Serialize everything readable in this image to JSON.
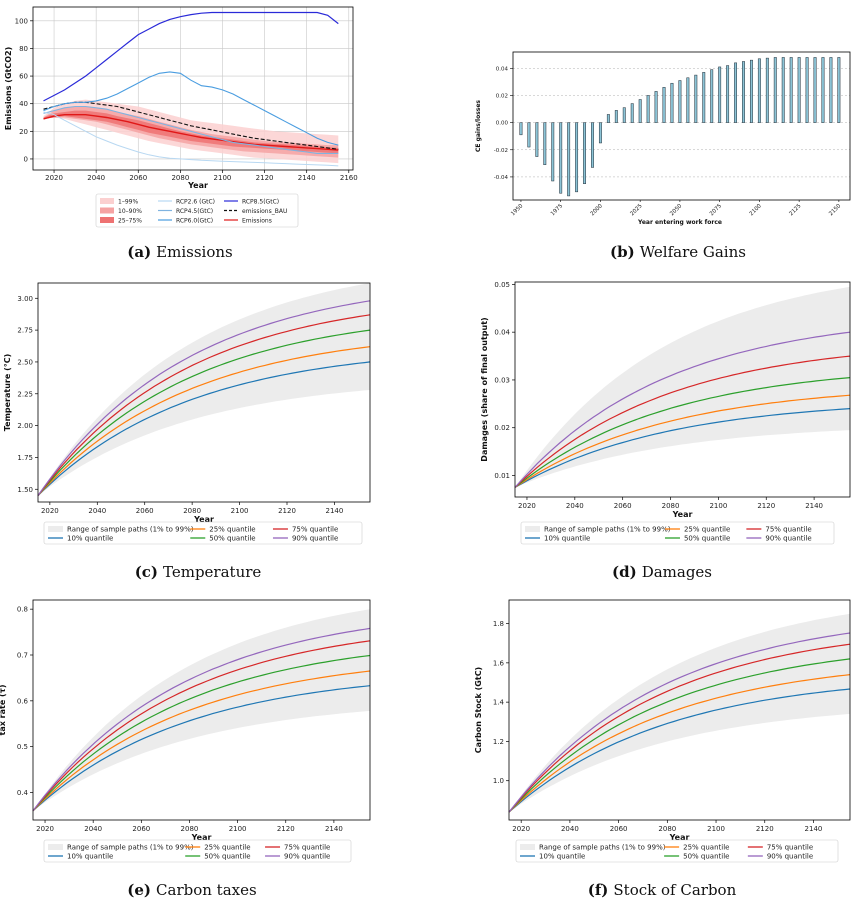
{
  "captions": [
    {
      "letter": "(a)",
      "text": "Emissions"
    },
    {
      "letter": "(b)",
      "text": "Welfare Gains"
    },
    {
      "letter": "(c)",
      "text": "Temperature"
    },
    {
      "letter": "(d)",
      "text": "Damages"
    },
    {
      "letter": "(e)",
      "text": "Carbon taxes"
    },
    {
      "letter": "(f)",
      "text": "Stock of Carbon"
    }
  ],
  "chart_data": [
    {
      "type": "area",
      "id": "emissions",
      "xlabel": "Year",
      "ylabel": "Emissions (GtCO2)",
      "xlim": [
        2010,
        2162
      ],
      "ylim": [
        -8,
        110
      ],
      "xticks": [
        2020,
        2040,
        2060,
        2080,
        2100,
        2120,
        2140,
        2160
      ],
      "yticks": [
        0,
        20,
        40,
        60,
        80,
        100
      ],
      "grid": true,
      "legend": [
        "1–99%",
        "10–90%",
        "25–75%",
        "RCP2.6 (GtC)",
        "RCP4.5(GtC)",
        "RCP6.0(GtC)",
        "RCP8.5(GtC)",
        "emissions_BAU",
        "Emissions"
      ],
      "colors": {
        "band_outer": "#fbd0d0",
        "band_mid": "#f5a3a3",
        "band_inner": "#ee7272",
        "emissions": "#e01818",
        "rcp26": "#b8d8f2",
        "rcp45": "#7fb3e0",
        "rcp60": "#4a9de0",
        "rcp85": "#2a2ad8",
        "bau": "#111111"
      },
      "x": [
        2015,
        2020,
        2025,
        2030,
        2035,
        2040,
        2045,
        2050,
        2055,
        2060,
        2065,
        2070,
        2075,
        2080,
        2085,
        2090,
        2095,
        2100,
        2105,
        2110,
        2115,
        2120,
        2125,
        2130,
        2135,
        2140,
        2145,
        2150,
        2155
      ],
      "bands": {
        "outer_lo": [
          29,
          30,
          29,
          27,
          25,
          23,
          21,
          19,
          17,
          15,
          13,
          11.5,
          10,
          8.5,
          7,
          6,
          5,
          4,
          3,
          2,
          1,
          0.5,
          0,
          -0.5,
          -1,
          -1.5,
          -2,
          -2.5,
          -3
        ],
        "outer_hi": [
          31,
          37,
          40,
          42,
          43,
          42,
          41,
          40,
          39,
          38,
          36,
          34,
          32,
          30,
          28,
          27,
          26,
          25,
          24,
          23,
          22,
          21,
          20,
          19.5,
          19,
          18.5,
          18,
          17.5,
          17
        ],
        "mid_lo": [
          29,
          30,
          30,
          29,
          28,
          27,
          25,
          23,
          21,
          19,
          17,
          15,
          13.5,
          12,
          10.5,
          9.5,
          8.5,
          7.5,
          6.5,
          5.5,
          5,
          4.5,
          4,
          3.5,
          3,
          2.5,
          2,
          1.5,
          1
        ],
        "mid_hi": [
          30,
          35,
          37,
          38,
          38,
          37,
          36,
          34,
          32.5,
          31,
          29,
          27,
          25,
          23,
          21,
          19.5,
          18,
          17,
          16,
          15,
          14,
          13,
          12.5,
          12,
          11.5,
          11,
          10.5,
          10,
          10
        ],
        "inner_lo": [
          29,
          30,
          31,
          30,
          29,
          28,
          27,
          25,
          23,
          21,
          19,
          17.5,
          16,
          14.5,
          13,
          12,
          11,
          10,
          9,
          8.5,
          8,
          7.5,
          7,
          6.5,
          6,
          5.5,
          5,
          4.5,
          4
        ],
        "inner_hi": [
          30,
          33,
          34,
          35,
          35,
          34,
          33,
          31,
          29.5,
          28,
          26,
          24,
          22,
          20,
          18.5,
          17,
          16,
          15,
          14,
          13,
          12,
          11.5,
          11,
          10.5,
          10,
          9.5,
          9,
          8.5,
          8
        ]
      },
      "series": [
        {
          "name": "Emissions",
          "values": [
            29,
            31,
            32,
            32,
            32,
            31,
            30,
            28.5,
            27,
            25,
            23,
            21.5,
            20,
            18.5,
            17,
            15.5,
            14.5,
            13.5,
            12.5,
            11.5,
            10.5,
            10,
            9.5,
            9,
            8.5,
            8,
            7.5,
            7,
            6.5
          ]
        },
        {
          "name": "emissions_BAU",
          "values": [
            36,
            38,
            40,
            41,
            41,
            40,
            39,
            38,
            36,
            34,
            32,
            30,
            28,
            26,
            24,
            22.5,
            21,
            19.5,
            18,
            16.5,
            15,
            14,
            13,
            12,
            11,
            10,
            9,
            8,
            7
          ]
        },
        {
          "name": "RCP8.5(GtC)",
          "values": [
            42,
            46,
            50,
            55,
            60,
            66,
            72,
            78,
            84,
            90,
            94,
            98,
            101,
            103,
            104.5,
            105.5,
            106,
            106,
            106,
            106,
            106,
            106,
            106,
            106,
            106,
            106,
            106,
            104,
            98
          ]
        },
        {
          "name": "RCP6.0(GtC)",
          "values": [
            35,
            38,
            40,
            41,
            41,
            42,
            44,
            47,
            51,
            55,
            59,
            62,
            63,
            62,
            57,
            53,
            52,
            50,
            47,
            43,
            39,
            35,
            31,
            27,
            23,
            19,
            15,
            12,
            10
          ]
        },
        {
          "name": "RCP4.5(GtC)",
          "values": [
            33,
            35,
            37,
            38,
            38,
            37,
            36,
            34,
            32,
            30,
            28,
            26,
            24,
            22,
            20,
            18,
            16,
            14,
            12,
            11,
            10,
            9,
            8,
            7,
            6,
            5,
            4,
            4,
            4
          ]
        },
        {
          "name": "RCP2.6 (GtC)",
          "values": [
            34,
            32,
            28,
            24,
            20,
            16,
            13,
            10,
            7.5,
            5,
            3,
            1.5,
            0.5,
            0,
            -0.5,
            -1,
            -1.3,
            -1.6,
            -1.9,
            -2.2,
            -2.5,
            -2.8,
            -3.1,
            -3.4,
            -3.7,
            -4,
            -4.3,
            -4.6,
            -5
          ]
        }
      ]
    },
    {
      "type": "bar",
      "id": "welfare",
      "xlabel": "Year entering work force",
      "ylabel": "CE gains/losses",
      "ylim": [
        -0.057,
        0.052
      ],
      "xticks": [
        "1950",
        "1975",
        "2000",
        "2025",
        "2050",
        "2075",
        "2100",
        "2125",
        "2150"
      ],
      "yticks": [
        "-0.04",
        "-0.02",
        "0.00",
        "0.02",
        "0.04"
      ],
      "ytick_values": [
        -0.04,
        -0.02,
        0,
        0.02,
        0.04
      ],
      "grid": "y-dashed",
      "x": [
        1950,
        1955,
        1960,
        1965,
        1970,
        1975,
        1980,
        1985,
        1990,
        1995,
        2000,
        2005,
        2010,
        2015,
        2020,
        2025,
        2030,
        2035,
        2040,
        2045,
        2050,
        2055,
        2060,
        2065,
        2070,
        2075,
        2080,
        2085,
        2090,
        2095,
        2100,
        2105,
        2110,
        2115,
        2120,
        2125,
        2130,
        2135,
        2140,
        2145,
        2150
      ],
      "values": [
        -0.009,
        -0.018,
        -0.025,
        -0.031,
        -0.043,
        -0.052,
        -0.054,
        -0.051,
        -0.045,
        -0.033,
        -0.015,
        0.006,
        0.009,
        0.011,
        0.014,
        0.017,
        0.02,
        0.023,
        0.026,
        0.029,
        0.031,
        0.033,
        0.035,
        0.037,
        0.039,
        0.041,
        0.042,
        0.044,
        0.045,
        0.046,
        0.047,
        0.0475,
        0.048,
        0.048,
        0.048,
        0.048,
        0.048,
        0.048,
        0.048,
        0.048,
        0.048
      ]
    },
    {
      "type": "line",
      "id": "temperature",
      "xlabel": "Year",
      "ylabel": "Temperature (°C)",
      "xlim": [
        2015,
        2155
      ],
      "ylim": [
        1.4,
        3.12
      ],
      "xticks": [
        "2020",
        "2040",
        "2060",
        "2080",
        "2100",
        "2120",
        "2140"
      ],
      "yticks": [
        "1.50",
        "1.75",
        "2.00",
        "2.25",
        "2.50",
        "2.75",
        "3.00"
      ],
      "ytick_values": [
        1.5,
        1.75,
        2.0,
        2.25,
        2.5,
        2.75,
        3.0
      ],
      "band_lo": 2.28,
      "band_hi": 3.12,
      "legend": [
        "Range of sample paths (1% to 99%)",
        "10% quantile",
        "25% quantile",
        "50% quantile",
        "75% quantile",
        "90% quantile"
      ],
      "x0": 2015,
      "y0": 1.45,
      "series": [
        {
          "name": "10% quantile",
          "end": 2.5,
          "color": "#1f77b4"
        },
        {
          "name": "25% quantile",
          "end": 2.62,
          "color": "#ff7f0e"
        },
        {
          "name": "50% quantile",
          "end": 2.75,
          "color": "#2ca02c"
        },
        {
          "name": "75% quantile",
          "end": 2.87,
          "color": "#d62728"
        },
        {
          "name": "90% quantile",
          "end": 2.98,
          "color": "#9467bd"
        }
      ]
    },
    {
      "type": "line",
      "id": "damages",
      "xlabel": "Year",
      "ylabel": "Damages (share of final output)",
      "xlim": [
        2015,
        2155
      ],
      "ylim": [
        0.0055,
        0.0505
      ],
      "xticks": [
        "2020",
        "2040",
        "2060",
        "2080",
        "2100",
        "2120",
        "2140"
      ],
      "yticks": [
        "0.01",
        "0.02",
        "0.03",
        "0.04",
        "0.05"
      ],
      "ytick_values": [
        0.01,
        0.02,
        0.03,
        0.04,
        0.05
      ],
      "band_lo": 0.0195,
      "band_hi": 0.0495,
      "legend": [
        "Range of sample paths (1% to 99%)",
        "10% quantile",
        "25% quantile",
        "50% quantile",
        "75% quantile",
        "90% quantile"
      ],
      "x0": 2015,
      "y0": 0.0075,
      "series": [
        {
          "name": "10% quantile",
          "end": 0.024,
          "color": "#1f77b4"
        },
        {
          "name": "25% quantile",
          "end": 0.0268,
          "color": "#ff7f0e"
        },
        {
          "name": "50% quantile",
          "end": 0.0305,
          "color": "#2ca02c"
        },
        {
          "name": "75% quantile",
          "end": 0.035,
          "color": "#d62728"
        },
        {
          "name": "90% quantile",
          "end": 0.04,
          "color": "#9467bd"
        }
      ]
    },
    {
      "type": "line",
      "id": "carbon_taxes",
      "xlabel": "Year",
      "ylabel": "tax rate (τ)",
      "xlim": [
        2015,
        2155
      ],
      "ylim": [
        0.34,
        0.82
      ],
      "xticks": [
        "2020",
        "2040",
        "2060",
        "2080",
        "2100",
        "2120",
        "2140"
      ],
      "yticks": [
        "0.4",
        "0.5",
        "0.6",
        "0.7",
        "0.8"
      ],
      "ytick_values": [
        0.4,
        0.5,
        0.6,
        0.7,
        0.8
      ],
      "band_lo": 0.578,
      "band_hi": 0.8,
      "legend": [
        "Range of sample paths (1% to 99%)",
        "10% quantile",
        "25% quantile",
        "50% quantile",
        "75% quantile",
        "90% quantile"
      ],
      "x0": 2015,
      "y0": 0.36,
      "series": [
        {
          "name": "10% quantile",
          "end": 0.633,
          "color": "#1f77b4"
        },
        {
          "name": "25% quantile",
          "end": 0.665,
          "color": "#ff7f0e"
        },
        {
          "name": "50% quantile",
          "end": 0.699,
          "color": "#2ca02c"
        },
        {
          "name": "75% quantile",
          "end": 0.731,
          "color": "#d62728"
        },
        {
          "name": "90% quantile",
          "end": 0.758,
          "color": "#9467bd"
        }
      ]
    },
    {
      "type": "line",
      "id": "carbon_stock",
      "xlabel": "Year",
      "ylabel": "Carbon Stock (GtC)",
      "xlim": [
        2015,
        2155
      ],
      "ylim": [
        0.8,
        1.92
      ],
      "xticks": [
        "2020",
        "2040",
        "2060",
        "2080",
        "2100",
        "2120",
        "2140"
      ],
      "yticks": [
        "1.0",
        "1.2",
        "1.4",
        "1.6",
        "1.8"
      ],
      "ytick_values": [
        1.0,
        1.2,
        1.4,
        1.6,
        1.8
      ],
      "band_lo": 1.34,
      "band_hi": 1.85,
      "legend": [
        "Range of sample paths (1% to 99%)",
        "10% quantile",
        "25% quantile",
        "50% quantile",
        "75% quantile",
        "90% quantile"
      ],
      "x0": 2015,
      "y0": 0.84,
      "series": [
        {
          "name": "10% quantile",
          "end": 1.467,
          "color": "#1f77b4"
        },
        {
          "name": "25% quantile",
          "end": 1.54,
          "color": "#ff7f0e"
        },
        {
          "name": "50% quantile",
          "end": 1.62,
          "color": "#2ca02c"
        },
        {
          "name": "75% quantile",
          "end": 1.695,
          "color": "#d62728"
        },
        {
          "name": "90% quantile",
          "end": 1.752,
          "color": "#9467bd"
        }
      ]
    }
  ]
}
